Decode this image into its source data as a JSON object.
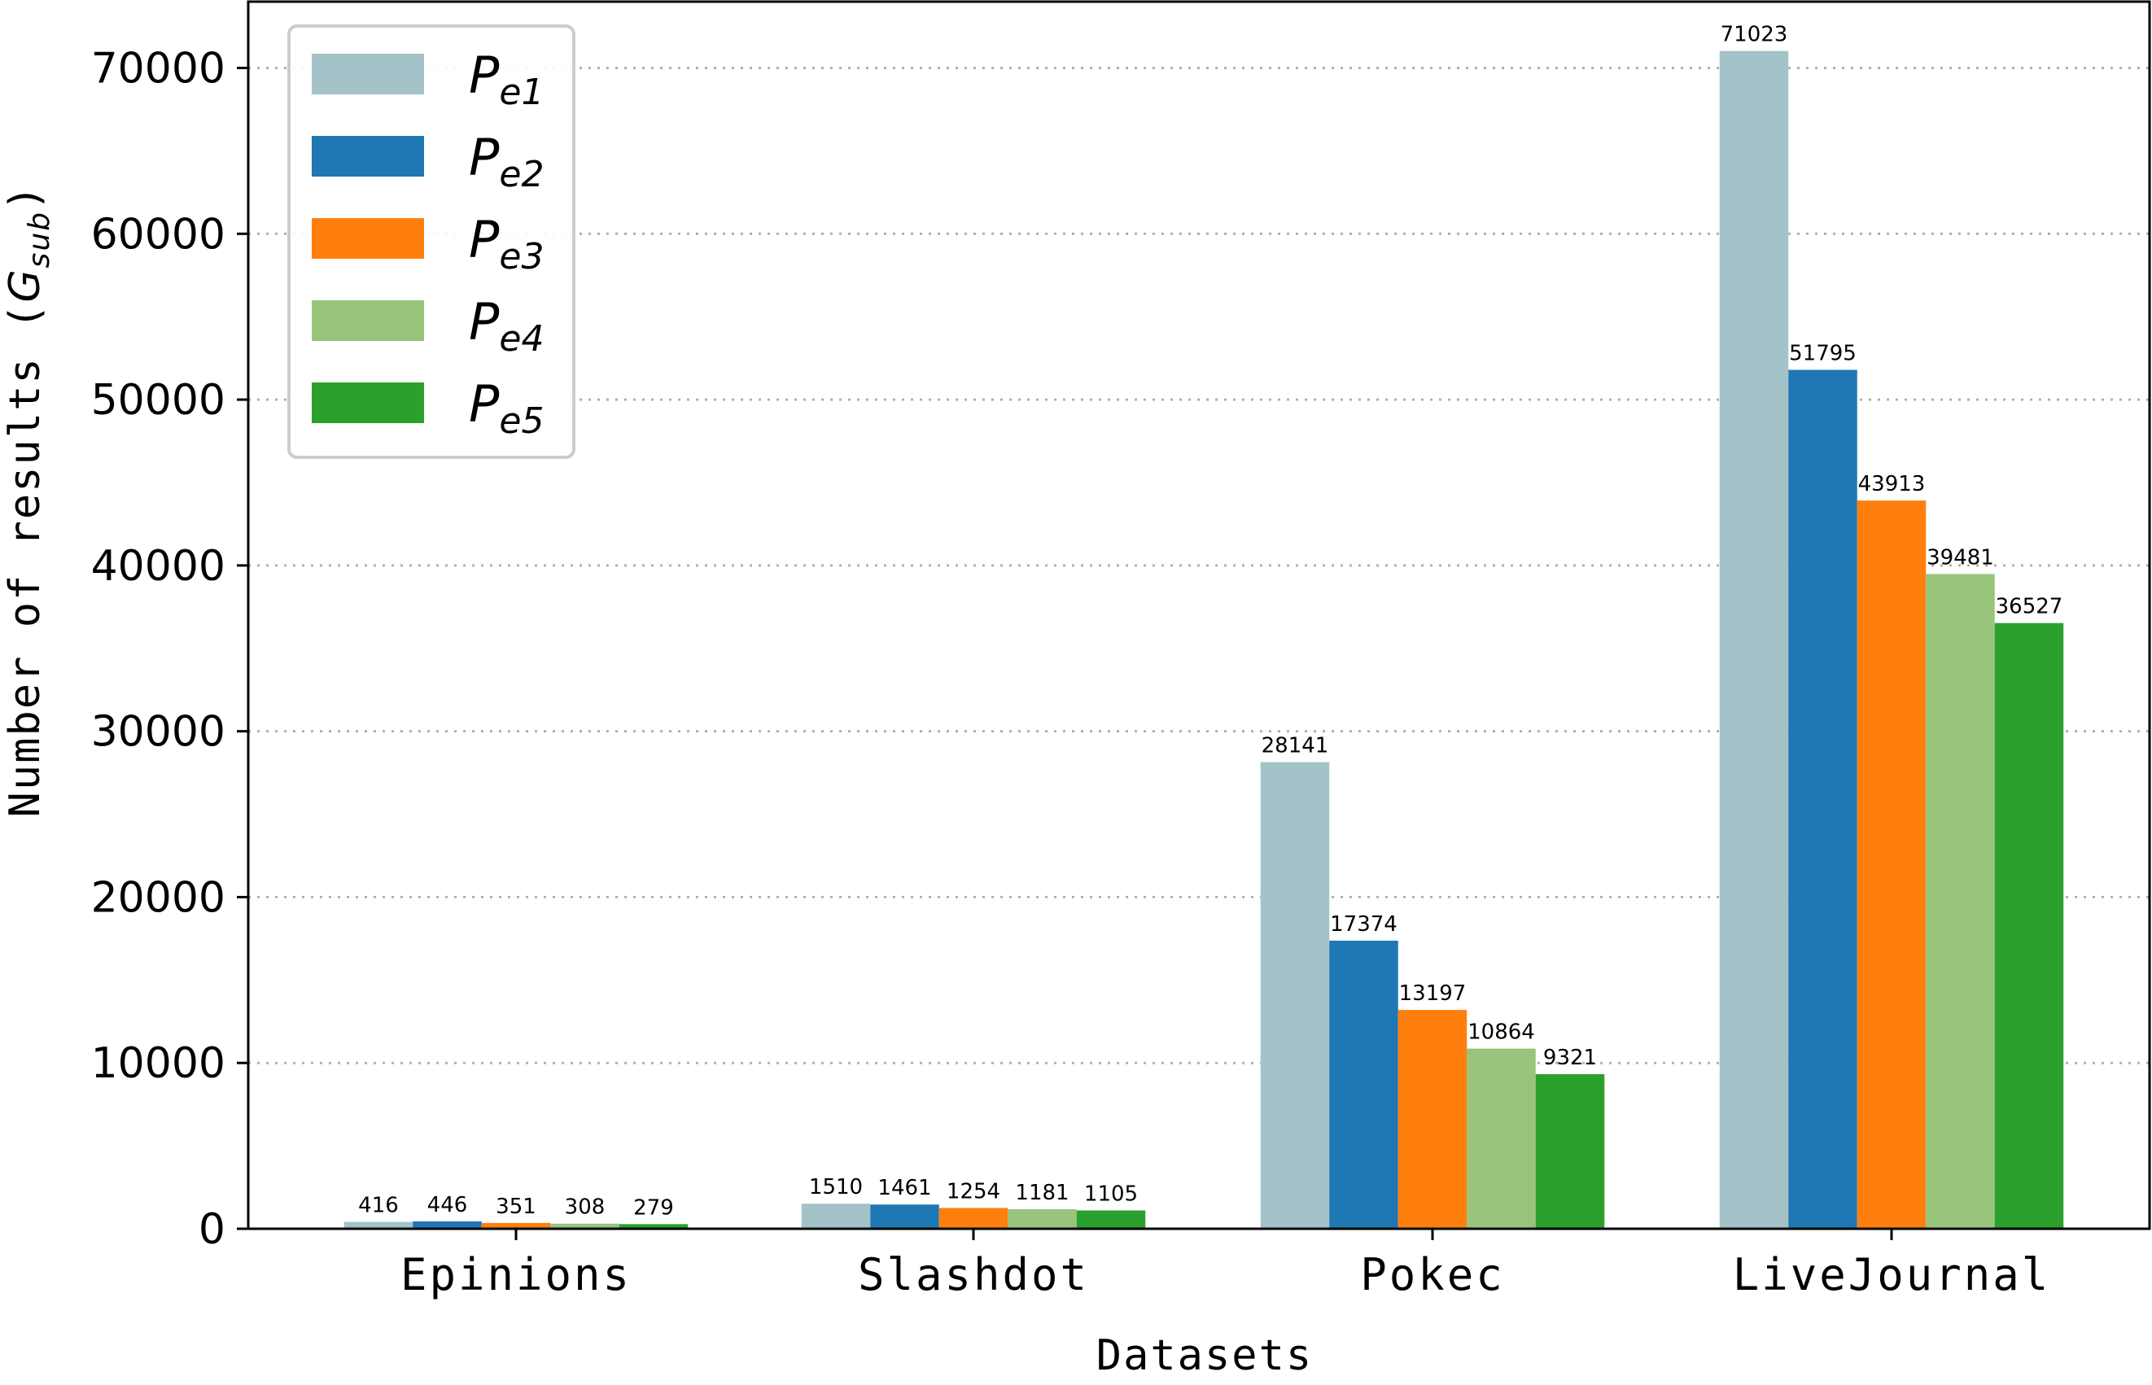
{
  "chart_data": {
    "type": "bar",
    "title": "",
    "xlabel": "Datasets",
    "ylabel": {
      "main": "Number of results (",
      "symbol": "G",
      "subscript": "sub",
      "close": ")"
    },
    "categories": [
      "Epinions",
      "Slashdot",
      "Pokec",
      "LiveJournal"
    ],
    "series": [
      {
        "name": "P",
        "subscript": "e1",
        "color": "#a4c3c9",
        "values": [
          416,
          1510,
          28141,
          71023
        ]
      },
      {
        "name": "P",
        "subscript": "e2",
        "color": "#1f77b4",
        "values": [
          446,
          1461,
          17374,
          51795
        ]
      },
      {
        "name": "P",
        "subscript": "e3",
        "color": "#ff7f0e",
        "values": [
          351,
          1254,
          13197,
          43913
        ]
      },
      {
        "name": "P",
        "subscript": "e4",
        "color": "#98c47c",
        "values": [
          308,
          1181,
          10864,
          39481
        ]
      },
      {
        "name": "P",
        "subscript": "e5",
        "color": "#2ca02c",
        "values": [
          279,
          1105,
          9321,
          36527
        ]
      }
    ],
    "yticks": [
      0,
      10000,
      20000,
      30000,
      40000,
      50000,
      60000,
      70000
    ],
    "ylim": [
      0,
      74000
    ],
    "grid": "horizontal dotted",
    "legend_position": "top-left",
    "data_labels": true
  }
}
